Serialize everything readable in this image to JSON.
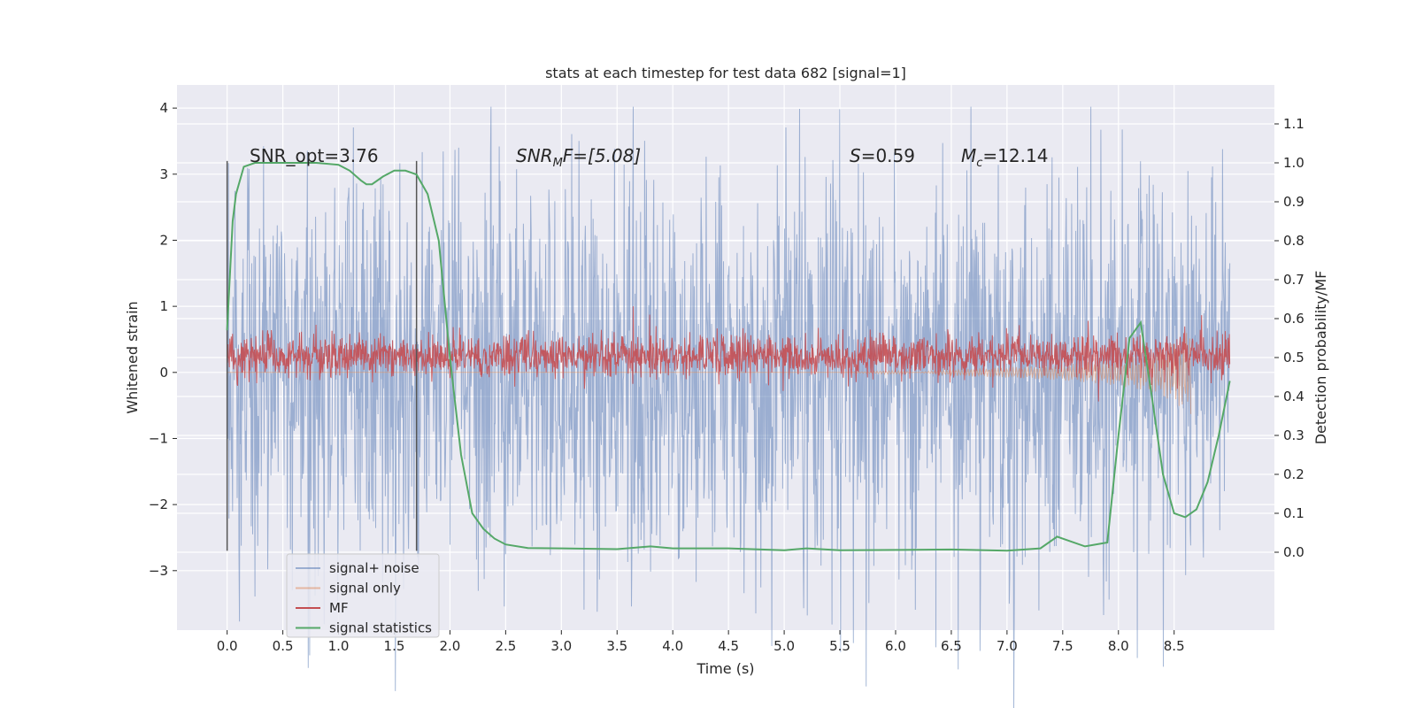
{
  "chart_data": {
    "type": "line",
    "title": "stats at each timestep for test data 682 [signal=1]",
    "xlabel": "Time (s)",
    "ylabel": "Whitened strain",
    "ylabel_right": "Detection probability/MF",
    "xlim": [
      -0.45,
      9.4
    ],
    "ylim": [
      -3.9,
      4.35
    ],
    "ylim_right": [
      -0.2,
      1.2
    ],
    "x_ticks": [
      "0.0",
      "0.5",
      "1.0",
      "1.5",
      "2.0",
      "2.5",
      "3.0",
      "3.5",
      "4.0",
      "4.5",
      "5.0",
      "5.5",
      "6.0",
      "6.5",
      "7.0",
      "7.5",
      "8.0",
      "8.5"
    ],
    "y_ticks": [
      "−3",
      "−2",
      "−1",
      "0",
      "1",
      "2",
      "3",
      "4"
    ],
    "y_ticks_right": [
      "0.0",
      "0.1",
      "0.2",
      "0.3",
      "0.4",
      "0.5",
      "0.6",
      "0.7",
      "0.8",
      "0.9",
      "1.0",
      "1.1"
    ],
    "grid": true,
    "legend_position": "lower-left",
    "background": "#eaeaf2",
    "annotations": [
      "SNR_opt=3.76",
      "SNR_MF=[5.08]",
      "S=0.59",
      "M_c=12.14"
    ],
    "annotation_text": {
      "snr_opt": "SNR_opt=3.76",
      "snr_mf_main": "SNR",
      "snr_mf_sub": "M",
      "snr_mf_tail": "F=[5.08]",
      "s_var": "S",
      "s_value": "=0.59",
      "mc_main": "M",
      "mc_sub": "c",
      "mc_value": "=12.14"
    },
    "vlines": [
      0.0,
      1.7
    ],
    "series": [
      {
        "name": "signal+ noise",
        "color": "#4c72b0",
        "opacity": 0.5,
        "kind": "noise",
        "x_range": [
          0.0,
          9.0
        ],
        "typical_min": -2.6,
        "typical_max": 2.6,
        "peak_max": 4.02,
        "peak_min": -3.45
      },
      {
        "name": "signal only",
        "color": "#dd8452",
        "opacity": 0.5,
        "kind": "chirp",
        "x_range": [
          0.0,
          8.65
        ],
        "points": [
          [
            0.0,
            0.0
          ],
          [
            5.5,
            0.0
          ],
          [
            6.0,
            0.03
          ],
          [
            6.5,
            -0.05
          ],
          [
            7.0,
            -0.08
          ],
          [
            7.5,
            -0.12
          ],
          [
            8.0,
            -0.2
          ],
          [
            8.3,
            -0.3
          ],
          [
            8.5,
            -0.45
          ],
          [
            8.65,
            -0.65
          ]
        ]
      },
      {
        "name": "MF",
        "color": "#c44e52",
        "opacity": 0.9,
        "kind": "noise",
        "x_range": [
          0.0,
          9.0
        ],
        "typical_min": -0.05,
        "typical_max": 0.55,
        "peak_max": 1.0
      },
      {
        "name": "signal statistics",
        "color": "#55a868",
        "kind": "line",
        "axis": "right",
        "points": [
          [
            0.0,
            0.57
          ],
          [
            0.05,
            0.85
          ],
          [
            0.08,
            0.92
          ],
          [
            0.15,
            0.99
          ],
          [
            0.25,
            1.0
          ],
          [
            0.4,
            1.0
          ],
          [
            0.6,
            1.0
          ],
          [
            0.8,
            1.0
          ],
          [
            1.0,
            0.995
          ],
          [
            1.1,
            0.98
          ],
          [
            1.2,
            0.955
          ],
          [
            1.25,
            0.945
          ],
          [
            1.3,
            0.945
          ],
          [
            1.4,
            0.965
          ],
          [
            1.5,
            0.98
          ],
          [
            1.6,
            0.98
          ],
          [
            1.7,
            0.97
          ],
          [
            1.8,
            0.92
          ],
          [
            1.9,
            0.8
          ],
          [
            2.0,
            0.5
          ],
          [
            2.1,
            0.25
          ],
          [
            2.2,
            0.1
          ],
          [
            2.3,
            0.06
          ],
          [
            2.4,
            0.035
          ],
          [
            2.5,
            0.02
          ],
          [
            2.7,
            0.011
          ],
          [
            3.0,
            0.01
          ],
          [
            3.5,
            0.008
          ],
          [
            3.8,
            0.015
          ],
          [
            4.0,
            0.01
          ],
          [
            4.5,
            0.01
          ],
          [
            5.0,
            0.005
          ],
          [
            5.2,
            0.01
          ],
          [
            5.5,
            0.005
          ],
          [
            6.0,
            0.006
          ],
          [
            6.5,
            0.007
          ],
          [
            7.0,
            0.004
          ],
          [
            7.3,
            0.01
          ],
          [
            7.45,
            0.04
          ],
          [
            7.55,
            0.03
          ],
          [
            7.7,
            0.015
          ],
          [
            7.9,
            0.025
          ],
          [
            8.0,
            0.3
          ],
          [
            8.1,
            0.55
          ],
          [
            8.2,
            0.59
          ],
          [
            8.3,
            0.4
          ],
          [
            8.4,
            0.2
          ],
          [
            8.5,
            0.1
          ],
          [
            8.6,
            0.09
          ],
          [
            8.7,
            0.11
          ],
          [
            8.8,
            0.18
          ],
          [
            8.9,
            0.3
          ],
          [
            9.0,
            0.44
          ]
        ]
      }
    ],
    "legend": [
      {
        "label": "signal+ noise",
        "color": "#4c72b0",
        "opacity": 0.5
      },
      {
        "label": "signal only",
        "color": "#dd8452",
        "opacity": 0.5
      },
      {
        "label": "MF",
        "color": "#c44e52",
        "opacity": 1
      },
      {
        "label": "signal statistics",
        "color": "#55a868",
        "opacity": 1
      }
    ]
  }
}
